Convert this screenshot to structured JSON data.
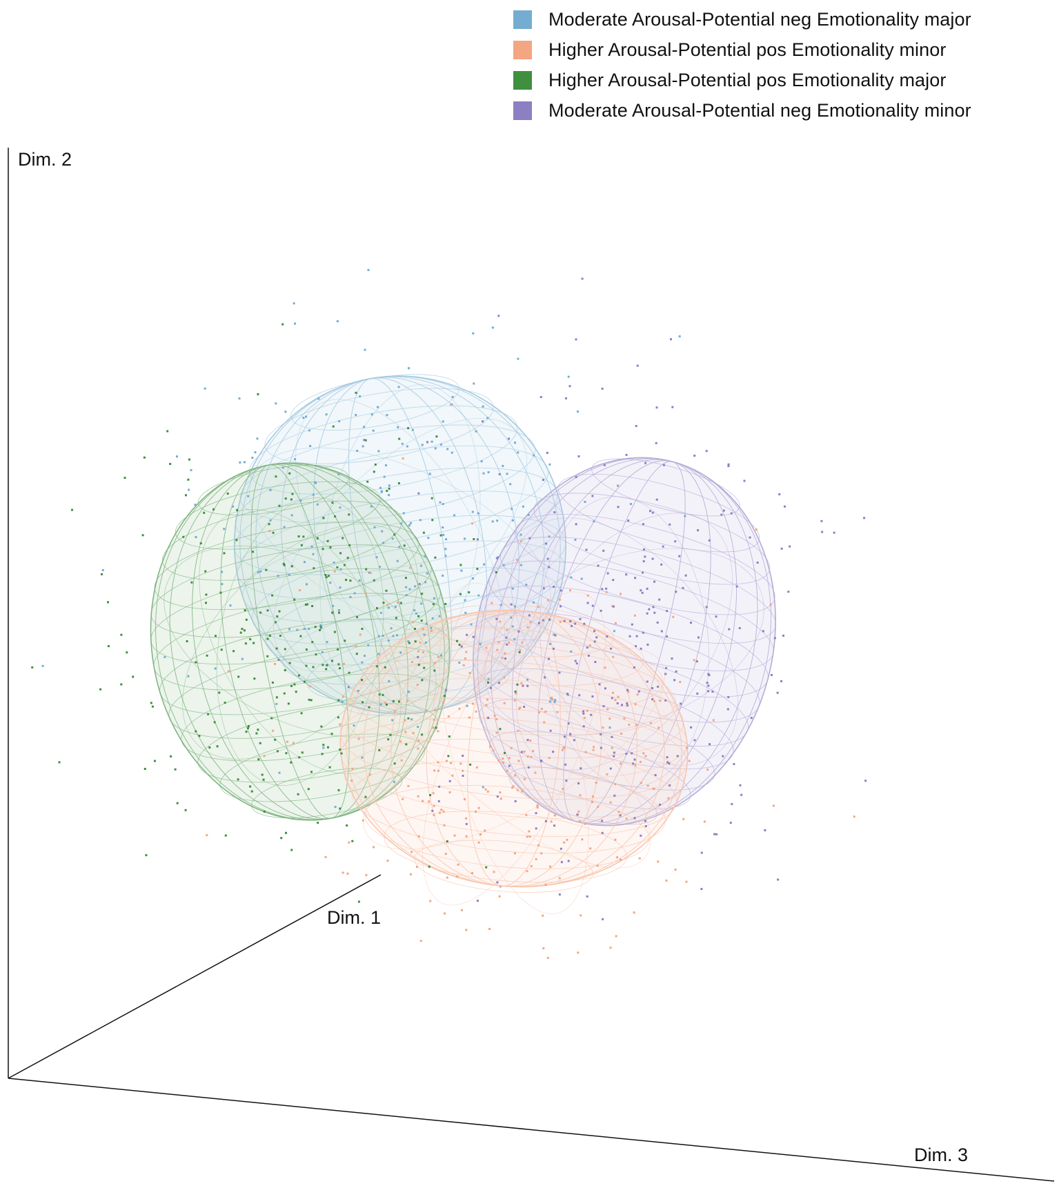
{
  "legend": [
    {
      "label": "Moderate Arousal-Potential neg Emotionality major",
      "color": "#74add1"
    },
    {
      "label": "Higher Arousal-Potential pos Emotionality minor",
      "color": "#f4a582"
    },
    {
      "label": "Higher Arousal-Potential pos Emotionality major",
      "color": "#3f8f3f"
    },
    {
      "label": "Moderate Arousal-Potential neg Emotionality minor",
      "color": "#8c7fc2"
    }
  ],
  "axes": {
    "x_label": "Dim. 1",
    "y_label": "Dim. 2",
    "z_label": "Dim. 3"
  },
  "chart_data": {
    "type": "scatter",
    "projection": "3d",
    "title": "",
    "series": [
      {
        "name": "Moderate Arousal-Potential neg Emotionality major",
        "color": "#74add1",
        "ellipsoid": true
      },
      {
        "name": "Higher Arousal-Potential pos Emotionality minor",
        "color": "#f4a582",
        "ellipsoid": true
      },
      {
        "name": "Higher Arousal-Potential pos Emotionality major",
        "color": "#3f8f3f",
        "ellipsoid": true
      },
      {
        "name": "Moderate Arousal-Potential neg Emotionality minor",
        "color": "#8c7fc2",
        "ellipsoid": true
      }
    ],
    "legend_position": "top-right",
    "grid": false
  }
}
